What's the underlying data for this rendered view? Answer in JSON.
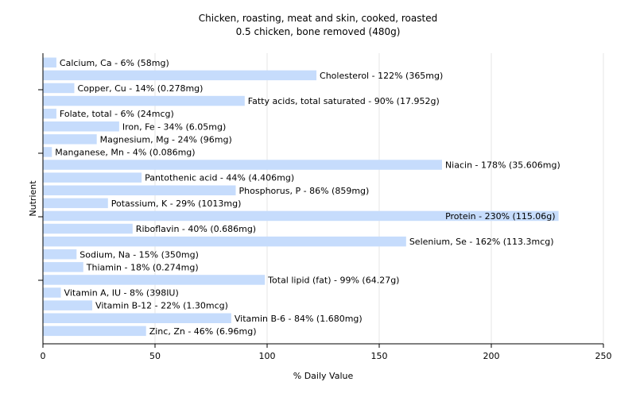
{
  "chart_data": {
    "type": "bar",
    "orientation": "horizontal",
    "title": "Chicken, roasting, meat and skin, cooked, roasted",
    "subtitle": "0.5 chicken, bone removed (480g)",
    "xlabel": "% Daily Value",
    "ylabel": "Nutrient",
    "xlim": [
      0,
      250
    ],
    "xticks": [
      "0",
      "50",
      "100",
      "150",
      "200",
      "250"
    ],
    "grid": "vertical",
    "bar_color": "#c6dcfc",
    "categories": [
      "Calcium, Ca",
      "Cholesterol",
      "Copper, Cu",
      "Fatty acids, total saturated",
      "Folate, total",
      "Iron, Fe",
      "Magnesium, Mg",
      "Manganese, Mn",
      "Niacin",
      "Pantothenic acid",
      "Phosphorus, P",
      "Potassium, K",
      "Protein",
      "Riboflavin",
      "Selenium, Se",
      "Sodium, Na",
      "Thiamin",
      "Total lipid (fat)",
      "Vitamin A, IU",
      "Vitamin B-12",
      "Vitamin B-6",
      "Zinc, Zn"
    ],
    "values": [
      6,
      122,
      14,
      90,
      6,
      34,
      24,
      4,
      178,
      44,
      86,
      29,
      230,
      40,
      162,
      15,
      18,
      99,
      8,
      22,
      84,
      46
    ],
    "labels": [
      "Calcium, Ca - 6% (58mg)",
      "Cholesterol - 122% (365mg)",
      "Copper, Cu - 14% (0.278mg)",
      "Fatty acids, total saturated - 90% (17.952g)",
      "Folate, total - 6% (24mcg)",
      "Iron, Fe - 34% (6.05mg)",
      "Magnesium, Mg - 24% (96mg)",
      "Manganese, Mn - 4% (0.086mg)",
      "Niacin - 178% (35.606mg)",
      "Pantothenic acid - 44% (4.406mg)",
      "Phosphorus, P - 86% (859mg)",
      "Potassium, K - 29% (1013mg)",
      "Protein - 230% (115.06g)",
      "Riboflavin - 40% (0.686mg)",
      "Selenium, Se - 162% (113.3mcg)",
      "Sodium, Na - 15% (350mg)",
      "Thiamin - 18% (0.274mg)",
      "Total lipid (fat) - 99% (64.27g)",
      "Vitamin A, IU - 8% (398IU)",
      "Vitamin B-12 - 22% (1.30mcg)",
      "Vitamin B-6 - 84% (1.680mg)",
      "Zinc, Zn - 46% (6.96mg)"
    ]
  }
}
